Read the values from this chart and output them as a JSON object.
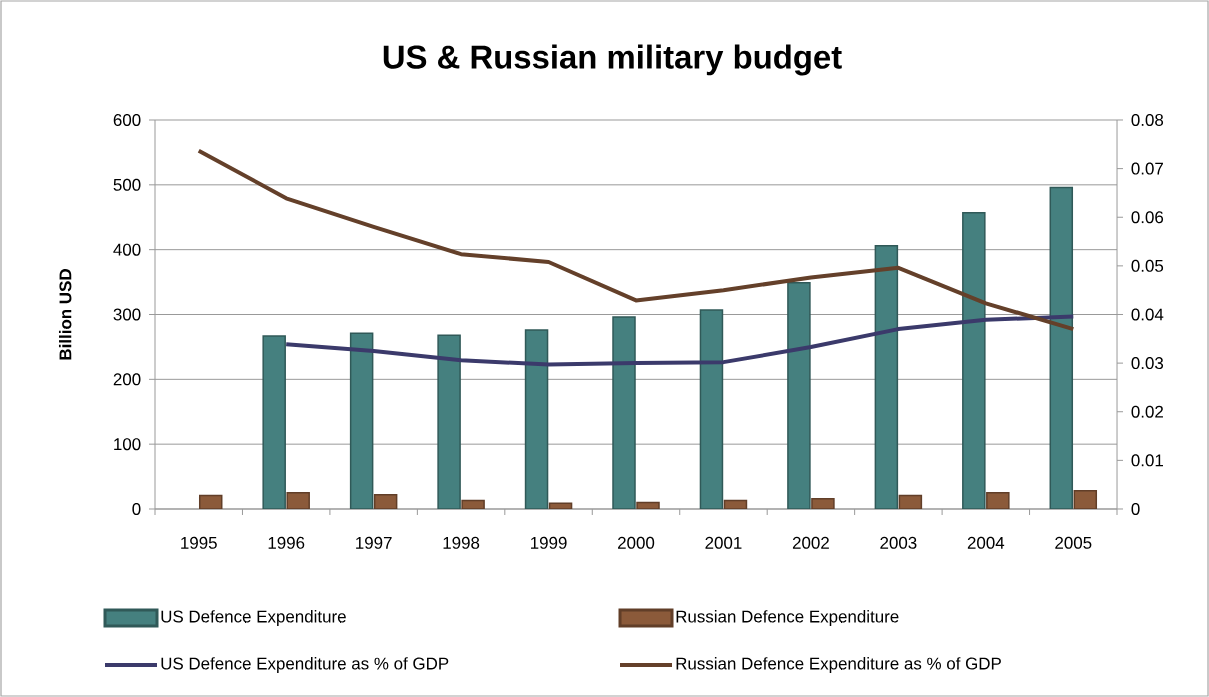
{
  "chart_data": {
    "type": "bar",
    "title": "US & Russian military budget",
    "ylabel": "Billion USD",
    "categories": [
      "1995",
      "1996",
      "1997",
      "1998",
      "1999",
      "2000",
      "2001",
      "2002",
      "2003",
      "2004",
      "2005"
    ],
    "series": [
      {
        "name": "US Defence Expenditure",
        "color": "#45807f",
        "values": [
          null,
          267,
          271,
          268,
          276,
          296,
          307,
          349,
          406,
          457,
          496
        ]
      },
      {
        "name": "Russian Defence Expenditure",
        "color": "#8b5a3a",
        "values": [
          21,
          25,
          22,
          13,
          9,
          10,
          13,
          16,
          21,
          25,
          28
        ]
      },
      {
        "name": "US Defence Expenditure as % of GDP",
        "type": "line",
        "axis": "y2",
        "color": "#3b3a6b",
        "values": [
          null,
          0.0339,
          0.0325,
          0.0306,
          0.0297,
          0.03,
          0.0302,
          0.0333,
          0.037,
          0.0389,
          0.0396
        ]
      },
      {
        "name": "Russian Defence Expenditure as % of GDP",
        "type": "line",
        "axis": "y2",
        "color": "#64402a",
        "values": [
          0.0737,
          0.0639,
          0.058,
          0.0524,
          0.0508,
          0.0429,
          0.045,
          0.0476,
          0.0496,
          0.0423,
          0.037
        ]
      }
    ],
    "ylim": [
      0,
      600
    ],
    "yticks": [
      0,
      100,
      200,
      300,
      400,
      500,
      600
    ],
    "y2lim": [
      0,
      0.08
    ],
    "y2ticks": [
      0,
      0.01,
      0.02,
      0.03,
      0.04,
      0.05,
      0.06,
      0.07,
      0.08
    ],
    "grid": "y",
    "legend": "bottom"
  }
}
